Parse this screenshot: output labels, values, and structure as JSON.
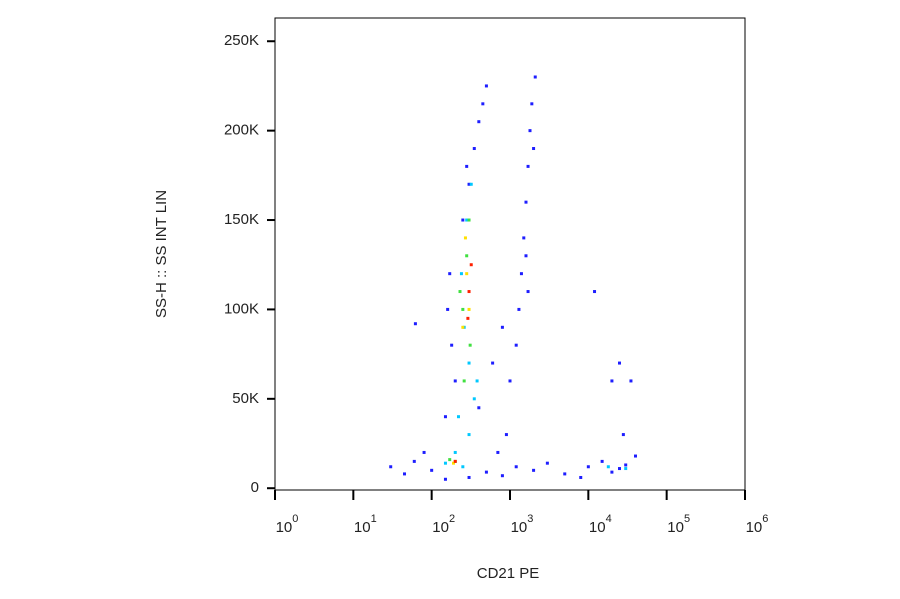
{
  "chart_data": {
    "type": "scatter",
    "x_label": "CD21 PE",
    "y_label": "SS-H :: SS INT LIN",
    "xscale": "log",
    "xlim": [
      1,
      1000000
    ],
    "xticks": [
      {
        "value": 1,
        "label": "10",
        "sup": "0"
      },
      {
        "value": 10,
        "label": "10",
        "sup": "1"
      },
      {
        "value": 100,
        "label": "10",
        "sup": "2"
      },
      {
        "value": 1000,
        "label": "10",
        "sup": "3"
      },
      {
        "value": 10000,
        "label": "10",
        "sup": "4"
      },
      {
        "value": 100000,
        "label": "10",
        "sup": "5"
      },
      {
        "value": 1000000,
        "label": "10",
        "sup": "6"
      }
    ],
    "ylim": [
      -1000,
      263000
    ],
    "yticks": [
      0,
      {
        "value": 50000,
        "label": "50K"
      },
      {
        "value": 100000,
        "label": "100K"
      },
      {
        "value": 150000,
        "label": "150K"
      },
      {
        "value": 200000,
        "label": "200K"
      },
      {
        "value": 250000,
        "label": "250K"
      }
    ],
    "series": [
      {
        "color": "#1e1eff",
        "x": [
          100,
          60,
          30,
          45,
          80,
          150,
          300,
          500,
          800,
          1200,
          2000,
          3000,
          5000,
          10000,
          15000,
          20000,
          30000,
          40000,
          8000,
          25000,
          150,
          200,
          180,
          160,
          170,
          400,
          600,
          800,
          900,
          700,
          250,
          300,
          350,
          400,
          450,
          500,
          280,
          1400,
          1500,
          1600,
          1700,
          1800,
          1900,
          2100,
          1300,
          1200,
          1000,
          1600,
          2000,
          1700,
          25000,
          20000,
          35000,
          12000,
          28000,
          62
        ],
        "values": [
          10000,
          15000,
          12000,
          8000,
          20000,
          5000,
          6000,
          9000,
          7000,
          12000,
          10000,
          14000,
          8000,
          12000,
          15000,
          9000,
          13000,
          18000,
          6000,
          11000,
          40000,
          60000,
          80000,
          100000,
          120000,
          45000,
          70000,
          90000,
          30000,
          20000,
          150000,
          170000,
          190000,
          205000,
          215000,
          225000,
          180000,
          120000,
          140000,
          160000,
          180000,
          200000,
          215000,
          230000,
          100000,
          80000,
          60000,
          130000,
          190000,
          110000,
          70000,
          60000,
          60000,
          110000,
          30000,
          92000
        ]
      },
      {
        "color": "#00c8ff",
        "x": [
          150,
          250,
          200,
          300,
          350,
          300,
          260,
          240,
          280,
          320,
          380,
          220,
          18000,
          30000
        ],
        "values": [
          14000,
          12000,
          20000,
          30000,
          50000,
          70000,
          90000,
          120000,
          150000,
          170000,
          60000,
          40000,
          12000,
          11000
        ]
      },
      {
        "color": "#40e040",
        "x": [
          200,
          250,
          280,
          310,
          260,
          300,
          230,
          170
        ],
        "values": [
          15000,
          100000,
          130000,
          80000,
          60000,
          150000,
          110000,
          16000
        ]
      },
      {
        "color": "#ffe000",
        "x": [
          280,
          300,
          250,
          190,
          270
        ],
        "values": [
          120000,
          100000,
          90000,
          14000,
          140000
        ]
      },
      {
        "color": "#ff2000",
        "x": [
          200,
          300,
          320,
          290
        ],
        "values": [
          15000,
          110000,
          125000,
          95000
        ]
      }
    ]
  }
}
